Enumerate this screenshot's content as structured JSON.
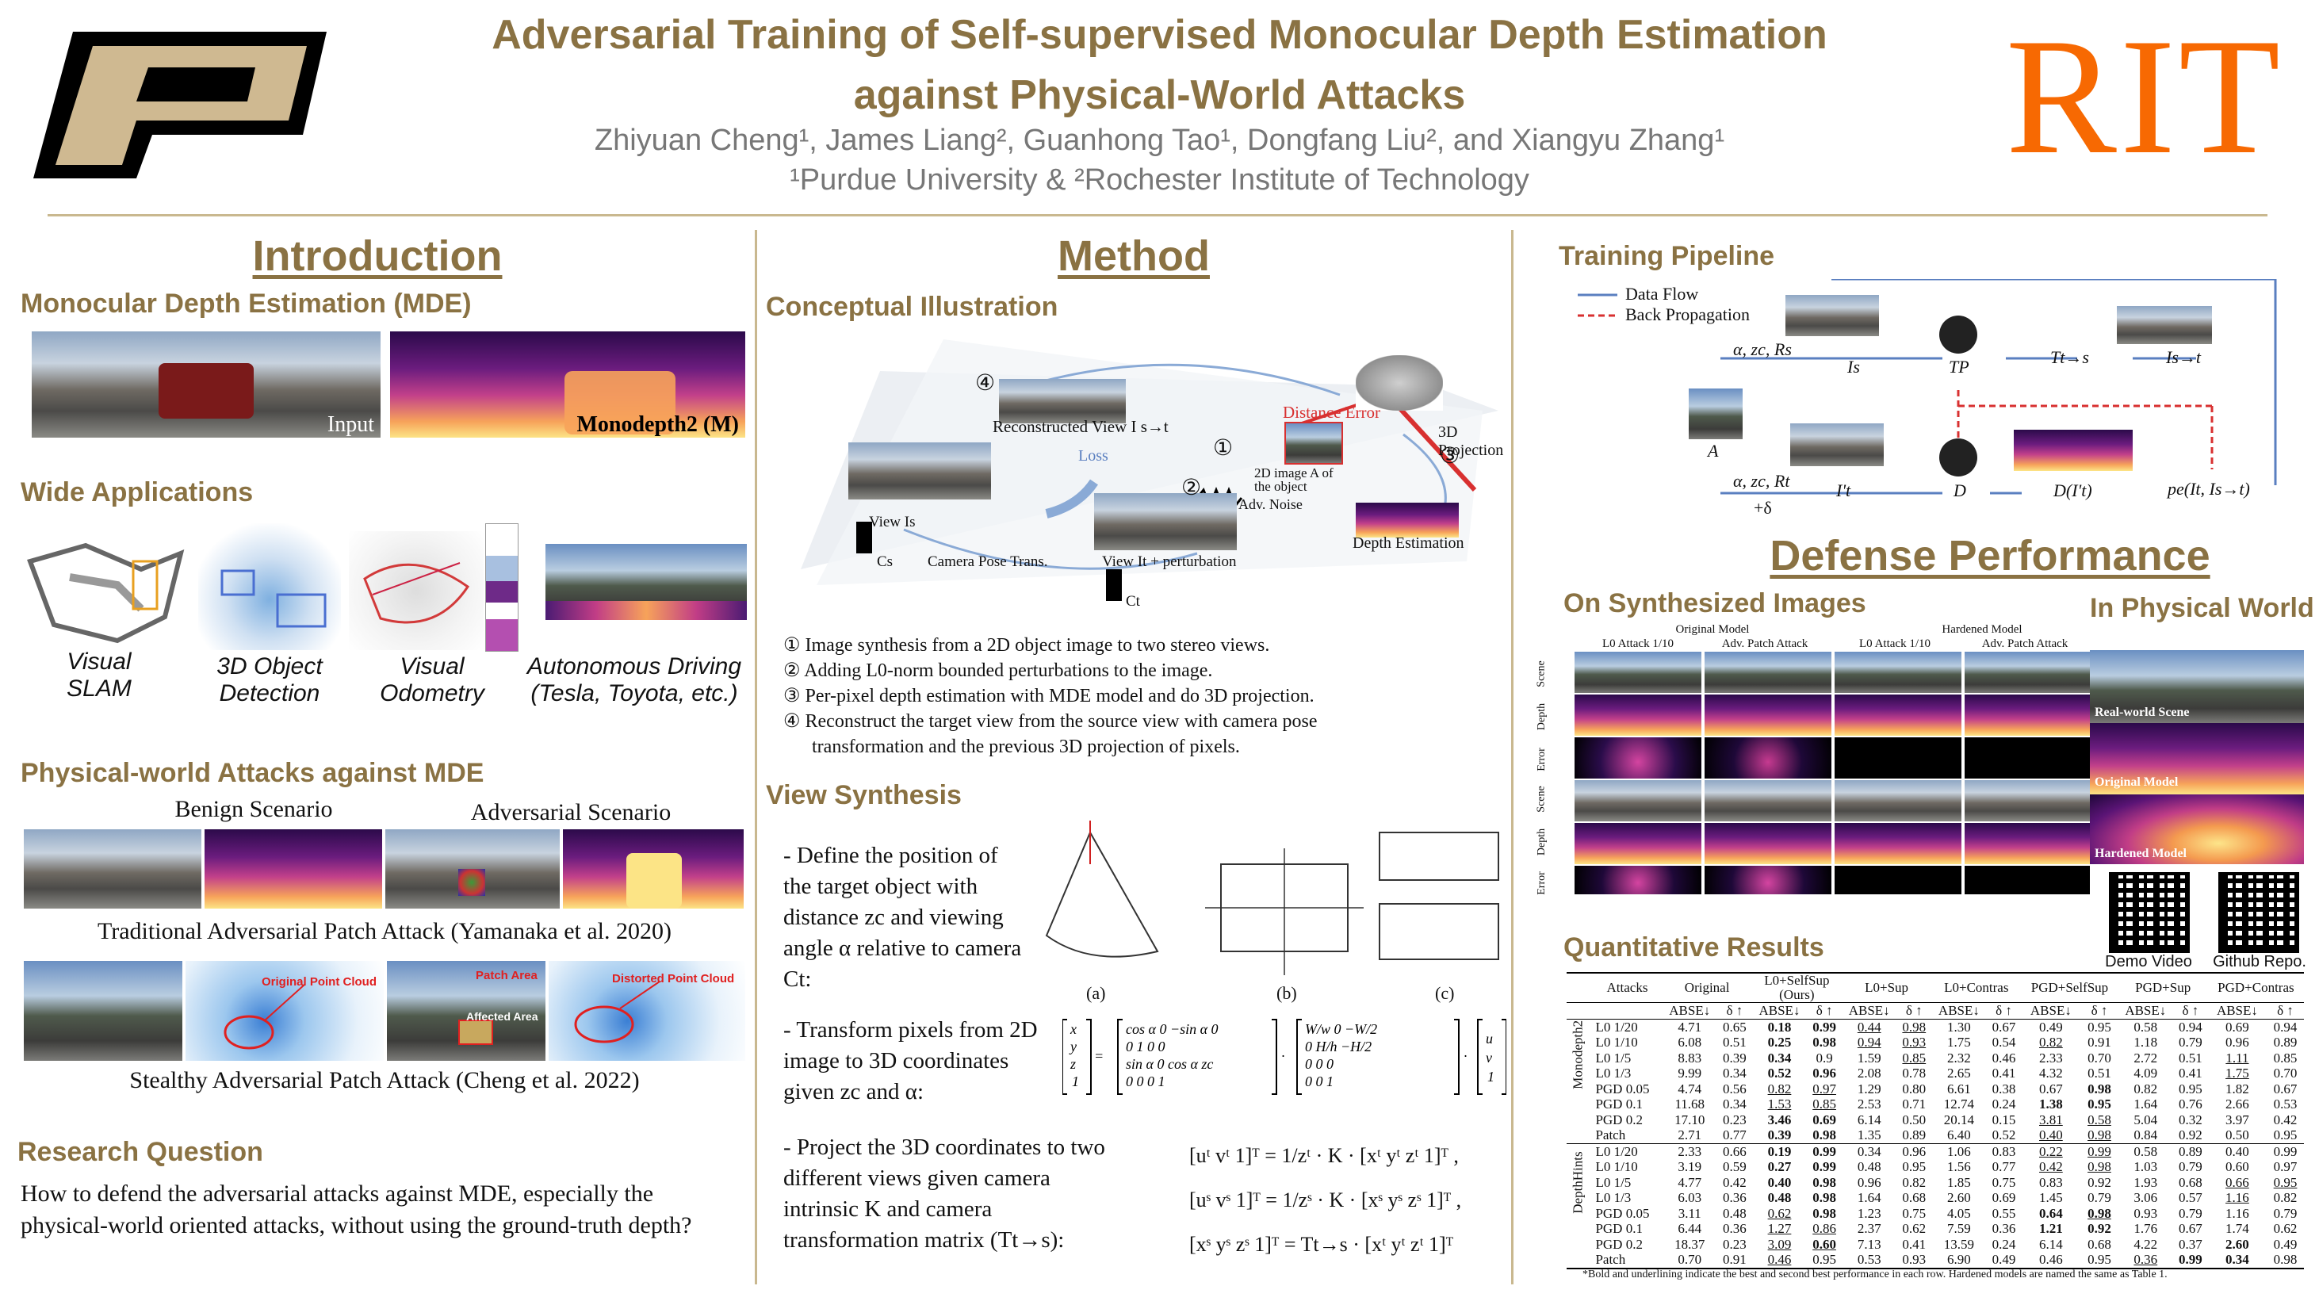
{
  "header": {
    "title_line1": "Adversarial Training of Self-supervised Monocular Depth Estimation",
    "title_line2": "against Physical-World Attacks",
    "authors": "Zhiyuan Cheng¹, James Liang², Guanhong Tao¹, Dongfang Liu², and Xiangyu Zhang¹",
    "affiliations": "¹Purdue University &  ²Rochester Institute of Technology",
    "rit_logo": "RIT"
  },
  "intro": {
    "heading": "Introduction",
    "mde_title": "Monocular Depth Estimation (MDE)",
    "input_label": "Input",
    "output_label": "Monodepth2 (M)",
    "apps_title": "Wide Applications",
    "apps": [
      "Visual\nSLAM",
      "3D Object\nDetection",
      "Visual\nOdometry",
      "Autonomous Driving\n(Tesla, Toyota, etc.)"
    ],
    "attacks_title": "Physical-world Attacks against MDE",
    "benign": "Benign Scenario",
    "adversarial": "Adversarial Scenario",
    "trad_caption": "Traditional Adversarial Patch Attack (Yamanaka et al. 2020)",
    "orig_cloud": "Original Point Cloud",
    "patch_area": "Patch Area",
    "affected_area": "Affected Area",
    "distorted_cloud": "Distorted Point Cloud",
    "stealthy_caption": "Stealthy Adversarial Patch Attack (Cheng et al. 2022)",
    "rq_title": "Research Question",
    "rq_text": "How to defend the adversarial attacks against MDE, especially the physical-world oriented attacks, without using the ground-truth depth?"
  },
  "method": {
    "heading": "Method",
    "concept_title": "Conceptual Illustration",
    "diag": {
      "recon_view": "Reconstructed View I s→t",
      "loss": "Loss",
      "distance_error": "Distance Error",
      "proj": "3D Projection",
      "image_a": "2D image A of the object",
      "adv_noise": "Adv. Noise",
      "view_s": "View Is",
      "view_t": "View It + perturbation",
      "cam_pose": "Camera Pose Trans.",
      "depth_est": "Depth Estimation",
      "cs": "Cs",
      "ct": "Ct",
      "n1": "①",
      "n2": "②",
      "n3": "③",
      "n4": "④"
    },
    "steps": [
      "① Image synthesis from a 2D object image to two stereo views.",
      "② Adding L0-norm bounded perturbations to the image.",
      "③ Per-pixel depth estimation with MDE model and do 3D projection.",
      "④ Reconstruct the target view from the source view with camera pose",
      "      transformation and the previous 3D projection of pixels."
    ],
    "vs_title": "View Synthesis",
    "vs_items": [
      "- Define the position of the target object with distance zc and viewing angle α relative to camera Ct:",
      "- Transform pixels from 2D image to 3D coordinates given zc and α:",
      "- Project the 3D coordinates to two different views given camera intrinsic K and camera transformation matrix (Tt→s):"
    ],
    "eq1": "[uᵗ vᵗ 1]ᵀ = 1/zᵗ · K · [xᵗ yᵗ zᵗ 1]ᵀ ,",
    "eq2": "[uˢ vˢ 1]ᵀ = 1/zˢ · K · [xˢ yˢ zˢ 1]ᵀ ,",
    "eq3": "[xˢ yˢ zˢ 1]ᵀ = Tt→s · [xᵗ yᵗ zᵗ 1]ᵀ",
    "fig_labels": [
      "(a)",
      "(b)",
      "(c)"
    ]
  },
  "right": {
    "pipeline_title": "Training Pipeline",
    "data_flow": "Data Flow",
    "back_prop": "Back Propagation",
    "pipe": {
      "azr_s": "α, zc, Rs",
      "azr_t": "α, zc, Rt",
      "plus_delta": "+δ",
      "A": "A",
      "Is": "Is",
      "It": "I't",
      "TP": "TP",
      "D": "D",
      "Dt": "D(I't)",
      "Tts": "Tt→s",
      "Ist": "Is→t",
      "pe": "pe(It, Is→t)"
    },
    "defense_title": "Defense Performance",
    "synth_title": "On Synthesized Images",
    "phys_title": "In Physical World",
    "orig_model": "Original Model",
    "hard_model": "Hardened Model",
    "cols": [
      "L0 Attack 1/10",
      "Adv. Patch Attack",
      "L0 Attack 1/10",
      "Adv. Patch Attack"
    ],
    "rows": [
      "Scene",
      "Depth",
      "Error",
      "Scene",
      "Depth",
      "Error"
    ],
    "phys_labels": [
      "Real-world Scene",
      "Original  Model",
      "Hardened Model"
    ],
    "demo": "Demo Video",
    "github": "Github Repo.",
    "quant_title": "Quantitative Results",
    "table": {
      "head1": [
        "Attacks",
        "Original",
        "L0+SelfSup\n(Ours)",
        "L0+Sup",
        "L0+Contras",
        "PGD+SelfSup",
        "PGD+Sup",
        "PGD+Contras"
      ],
      "head2": [
        "ABSE↓",
        "δ ↑"
      ],
      "groups": [
        {
          "name": "Monodepth2",
          "rows": [
            [
              "L0 1/20",
              "4.71",
              "0.65",
              "0.18",
              "0.99",
              "0.44",
              "0.98",
              "1.30",
              "0.67",
              "0.49",
              "0.95",
              "0.58",
              "0.94",
              "0.69",
              "0.94"
            ],
            [
              "L0 1/10",
              "6.08",
              "0.51",
              "0.25",
              "0.98",
              "0.94",
              "0.93",
              "1.75",
              "0.54",
              "0.82",
              "0.91",
              "1.18",
              "0.79",
              "0.96",
              "0.89"
            ],
            [
              "L0 1/5",
              "8.83",
              "0.39",
              "0.34",
              "0.9",
              "1.59",
              "0.85",
              "2.32",
              "0.46",
              "2.33",
              "0.70",
              "2.72",
              "0.51",
              "1.11",
              "0.85"
            ],
            [
              "L0 1/3",
              "9.99",
              "0.34",
              "0.52",
              "0.96",
              "2.08",
              "0.78",
              "2.65",
              "0.41",
              "4.32",
              "0.51",
              "4.09",
              "0.41",
              "1.75",
              "0.70"
            ],
            [
              "PGD 0.05",
              "4.74",
              "0.56",
              "0.82",
              "0.97",
              "1.29",
              "0.80",
              "6.61",
              "0.38",
              "0.67",
              "0.98",
              "0.82",
              "0.95",
              "1.82",
              "0.67"
            ],
            [
              "PGD 0.1",
              "11.68",
              "0.34",
              "1.53",
              "0.85",
              "2.53",
              "0.71",
              "12.74",
              "0.24",
              "1.38",
              "0.95",
              "1.64",
              "0.76",
              "2.66",
              "0.53"
            ],
            [
              "PGD 0.2",
              "17.10",
              "0.23",
              "3.46",
              "0.69",
              "6.14",
              "0.50",
              "20.14",
              "0.15",
              "3.81",
              "0.58",
              "5.04",
              "0.32",
              "3.97",
              "0.42"
            ],
            [
              "Patch",
              "2.71",
              "0.77",
              "0.39",
              "0.98",
              "1.35",
              "0.89",
              "6.40",
              "0.52",
              "0.40",
              "0.98",
              "0.84",
              "0.92",
              "0.50",
              "0.95"
            ]
          ]
        },
        {
          "name": "DepthHints",
          "rows": [
            [
              "L0 1/20",
              "2.33",
              "0.66",
              "0.19",
              "0.99",
              "0.34",
              "0.96",
              "1.06",
              "0.83",
              "0.22",
              "0.99",
              "0.58",
              "0.89",
              "0.40",
              "0.99"
            ],
            [
              "L0 1/10",
              "3.19",
              "0.59",
              "0.27",
              "0.99",
              "0.48",
              "0.95",
              "1.56",
              "0.77",
              "0.42",
              "0.98",
              "1.03",
              "0.79",
              "0.60",
              "0.97"
            ],
            [
              "L0 1/5",
              "4.77",
              "0.42",
              "0.40",
              "0.98",
              "0.96",
              "0.82",
              "1.85",
              "0.75",
              "0.83",
              "0.92",
              "1.93",
              "0.68",
              "0.66",
              "0.95"
            ],
            [
              "L0 1/3",
              "6.03",
              "0.36",
              "0.48",
              "0.98",
              "1.64",
              "0.68",
              "2.60",
              "0.69",
              "1.45",
              "0.79",
              "3.06",
              "0.57",
              "1.16",
              "0.82"
            ],
            [
              "PGD 0.05",
              "3.11",
              "0.48",
              "0.62",
              "0.98",
              "1.23",
              "0.75",
              "4.05",
              "0.55",
              "0.64",
              "0.98",
              "0.93",
              "0.79",
              "1.16",
              "0.79"
            ],
            [
              "PGD 0.1",
              "6.44",
              "0.36",
              "1.27",
              "0.86",
              "2.37",
              "0.62",
              "7.59",
              "0.36",
              "1.21",
              "0.92",
              "1.76",
              "0.67",
              "1.74",
              "0.62"
            ],
            [
              "PGD 0.2",
              "18.37",
              "0.23",
              "3.09",
              "0.60",
              "7.13",
              "0.41",
              "13.59",
              "0.24",
              "6.14",
              "0.68",
              "4.22",
              "0.37",
              "2.60",
              "0.49"
            ],
            [
              "Patch",
              "0.70",
              "0.91",
              "0.46",
              "0.95",
              "0.53",
              "0.93",
              "6.90",
              "0.49",
              "0.46",
              "0.95",
              "0.36",
              "0.99",
              "0.34",
              "0.98"
            ]
          ]
        }
      ],
      "footnote": "*Bold and underlining indicate the best and second best performance in each row. Hardened models are named the same as Table 1."
    }
  }
}
